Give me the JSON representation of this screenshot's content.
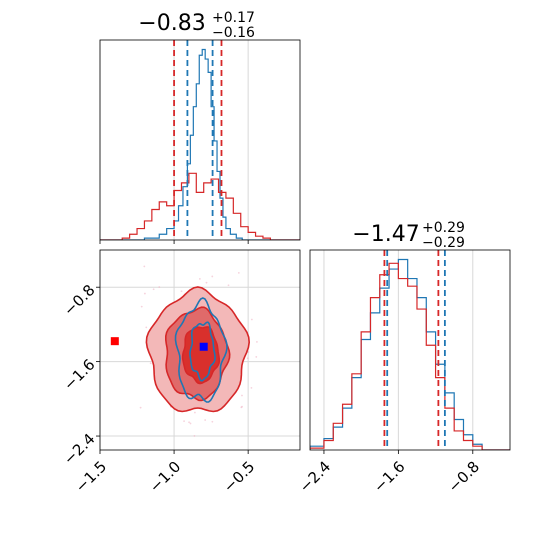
{
  "chart_data": [
    {
      "type": "histogram",
      "panel": "top-left",
      "title": {
        "main": "−0.83",
        "sup": "+0.17",
        "sub": "−0.16"
      },
      "xlim": [
        -1.5,
        -0.15
      ],
      "grid": true,
      "series": [
        {
          "name": "",
          "color": "#1f77b4",
          "bins": [
            -1.5,
            -1.2,
            -1.1,
            -1.05,
            -1.0,
            -0.97,
            -0.94,
            -0.91,
            -0.89,
            -0.87,
            -0.85,
            -0.83,
            -0.81,
            -0.79,
            -0.77,
            -0.75,
            -0.73,
            -0.71,
            -0.69,
            -0.67,
            -0.65,
            -0.62,
            -0.58,
            -0.54,
            -0.5,
            -0.15
          ],
          "density": [
            0,
            0.01,
            0.03,
            0.06,
            0.1,
            0.18,
            0.28,
            0.4,
            0.55,
            0.7,
            0.82,
            0.97,
            1.0,
            0.95,
            0.88,
            0.7,
            0.52,
            0.36,
            0.22,
            0.12,
            0.06,
            0.03,
            0.01,
            0.0,
            0
          ]
        },
        {
          "name": "",
          "color": "#d62728",
          "bins": [
            -1.5,
            -1.35,
            -1.3,
            -1.25,
            -1.2,
            -1.15,
            -1.1,
            -1.05,
            -1.0,
            -0.95,
            -0.9,
            -0.85,
            -0.8,
            -0.75,
            -0.7,
            -0.65,
            -0.6,
            -0.55,
            -0.5,
            -0.45,
            -0.4,
            -0.35,
            -0.15
          ],
          "density": [
            0,
            0.01,
            0.03,
            0.06,
            0.1,
            0.16,
            0.2,
            0.18,
            0.26,
            0.3,
            0.35,
            0.25,
            0.3,
            0.32,
            0.25,
            0.22,
            0.14,
            0.07,
            0.04,
            0.02,
            0.01,
            0
          ]
        }
      ],
      "vlines": [
        {
          "x": -1.0,
          "color": "#d62728"
        },
        {
          "x": -0.91,
          "color": "#1f77b4"
        },
        {
          "x": -0.74,
          "color": "#1f77b4"
        },
        {
          "x": -0.68,
          "color": "#d62728"
        }
      ]
    },
    {
      "type": "contour",
      "panel": "bottom-left",
      "xlim": [
        -1.5,
        -0.15
      ],
      "ylim": [
        -2.55,
        -0.4
      ],
      "xticks": [
        -1.5,
        -1.0,
        -0.5
      ],
      "xticklabels": [
        "−1.5",
        "−1.0",
        "−0.5"
      ],
      "yticks": [
        -0.8,
        -1.6,
        -2.4
      ],
      "yticklabels": [
        "−0.8",
        "−1.6",
        "−2.4"
      ],
      "grid": true,
      "red_contours": [
        {
          "cx": -0.84,
          "cy": -1.5,
          "rx": 0.33,
          "ry": 0.65,
          "style": "fill",
          "fill": "#f3b8b8"
        },
        {
          "cx": -0.85,
          "cy": -1.52,
          "rx": 0.21,
          "ry": 0.48,
          "style": "fill",
          "fill": "#e06a6a"
        },
        {
          "cx": -0.82,
          "cy": -1.52,
          "rx": 0.12,
          "ry": 0.3,
          "style": "fill",
          "fill": "#d9302c"
        }
      ],
      "blue_contours": [
        {
          "cx": -0.82,
          "cy": -1.5,
          "rx": 0.16,
          "ry": 0.52
        },
        {
          "cx": -0.81,
          "cy": -1.48,
          "rx": 0.08,
          "ry": 0.3
        }
      ],
      "markers": [
        {
          "x": -1.4,
          "y": -1.38,
          "color": "#ff0000",
          "shape": "square"
        },
        {
          "x": -0.8,
          "y": -1.44,
          "color": "#0000ff",
          "shape": "square"
        }
      ]
    },
    {
      "type": "histogram",
      "panel": "bottom-right",
      "title": {
        "main": "−1.47",
        "sup": "+0.29",
        "sub": "−0.29"
      },
      "xlim": [
        -2.55,
        -0.4
      ],
      "xticks": [
        -2.4,
        -1.6,
        -0.8
      ],
      "xticklabels": [
        "−2.4",
        "−1.6",
        "−0.8"
      ],
      "grid": true,
      "series": [
        {
          "name": "",
          "color": "#1f77b4",
          "bins": [
            -2.55,
            -2.4,
            -2.3,
            -2.2,
            -2.1,
            -2.0,
            -1.9,
            -1.8,
            -1.7,
            -1.6,
            -1.5,
            -1.4,
            -1.3,
            -1.2,
            -1.1,
            -1.0,
            -0.9,
            -0.8,
            -0.7,
            -0.4
          ],
          "density": [
            0.02,
            0.06,
            0.12,
            0.22,
            0.38,
            0.58,
            0.72,
            0.85,
            0.95,
            1.0,
            0.9,
            0.8,
            0.62,
            0.45,
            0.3,
            0.16,
            0.08,
            0.03,
            0.0
          ]
        },
        {
          "name": "",
          "color": "#d62728",
          "bins": [
            -2.55,
            -2.4,
            -2.3,
            -2.2,
            -2.1,
            -2.0,
            -1.9,
            -1.8,
            -1.7,
            -1.6,
            -1.5,
            -1.4,
            -1.3,
            -1.2,
            -1.1,
            -1.0,
            -0.9,
            -0.8,
            -0.7,
            -0.4
          ],
          "density": [
            0.01,
            0.05,
            0.14,
            0.24,
            0.4,
            0.62,
            0.8,
            0.92,
            0.98,
            0.9,
            0.86,
            0.74,
            0.55,
            0.38,
            0.22,
            0.1,
            0.05,
            0.02,
            0.0
          ]
        }
      ],
      "vlines": [
        {
          "x": -1.75,
          "color": "#d62728"
        },
        {
          "x": -1.72,
          "color": "#1f77b4"
        },
        {
          "x": -1.17,
          "color": "#d62728"
        },
        {
          "x": -1.1,
          "color": "#1f77b4"
        }
      ]
    }
  ]
}
